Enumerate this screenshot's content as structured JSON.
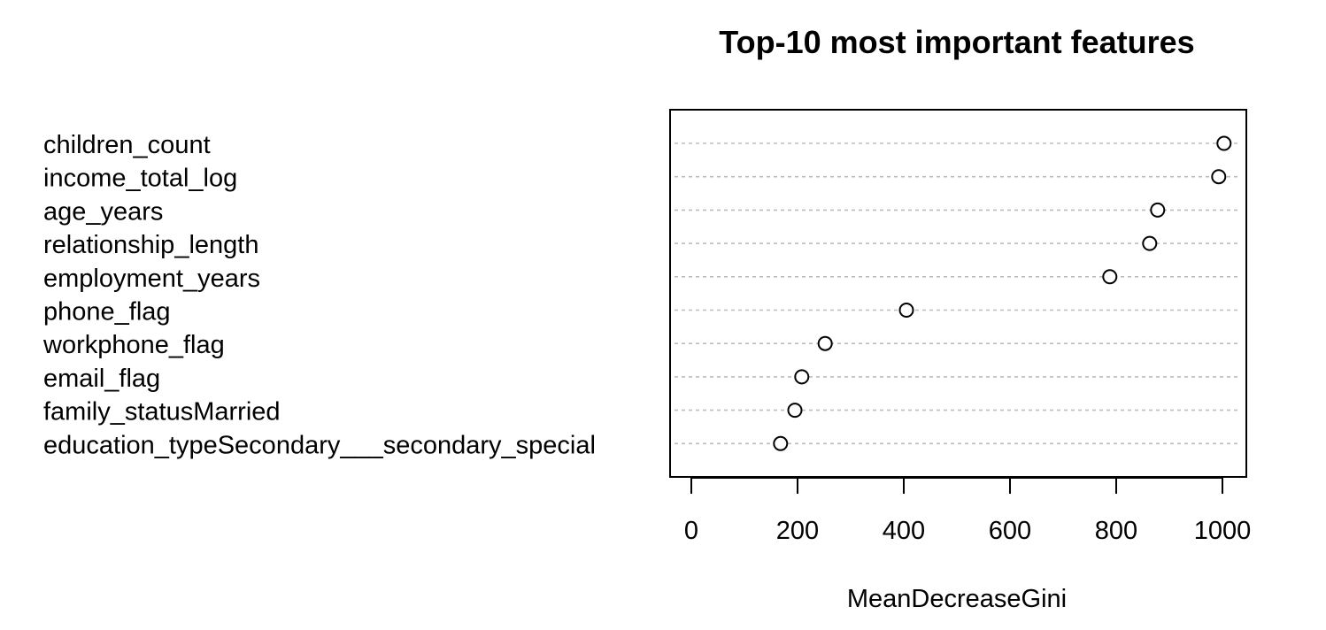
{
  "chart_data": {
    "type": "scatter",
    "title": "Top-10 most important features",
    "xlabel": "MeanDecreaseGini",
    "ylabel": "",
    "xlim": [
      -40,
      1045
    ],
    "x_ticks": [
      "0",
      "200",
      "400",
      "600",
      "800",
      "1000"
    ],
    "x_tick_values": [
      0,
      200,
      400,
      600,
      800,
      1000
    ],
    "grid": "horizontal dashed",
    "categories": [
      "children_count",
      "income_total_log",
      "age_years",
      "relationship_length",
      "employment_years",
      "phone_flag",
      "workphone_flag",
      "email_flag",
      "family_statusMarried",
      "education_typeSecondary___secondary_special"
    ],
    "values": [
      1003,
      993,
      878,
      863,
      788,
      405,
      252,
      208,
      195,
      168
    ]
  }
}
